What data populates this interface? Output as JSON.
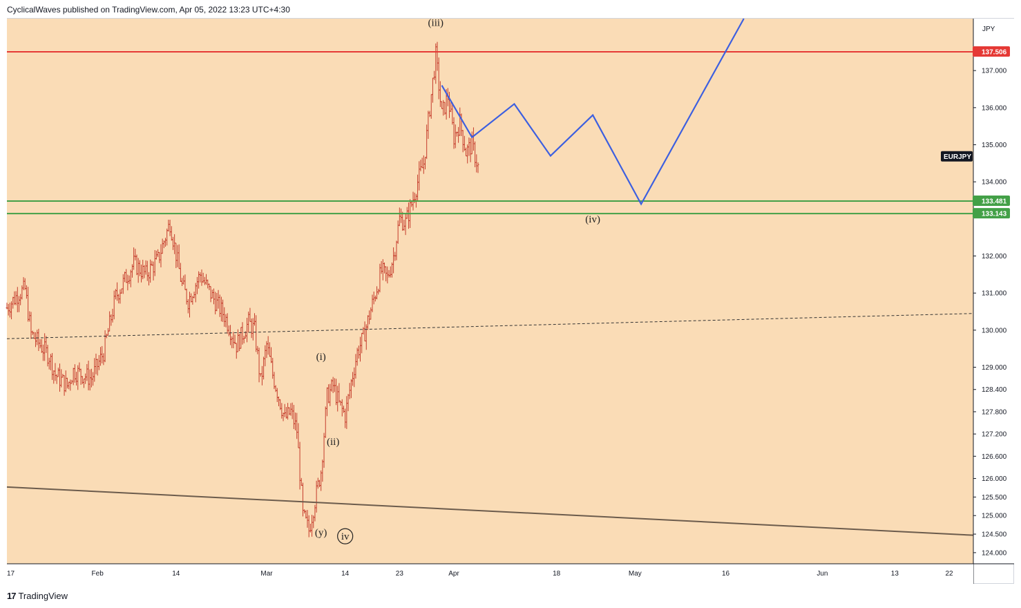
{
  "header": {
    "text": "CyclicalWaves published on TradingView.com, Apr 05, 2022 13:23 UTC+4:30"
  },
  "footer": {
    "logo": "17",
    "brand": "TradingView"
  },
  "colors": {
    "background": "#fadcb6",
    "candle": "#c43a2a",
    "resistance": "#e53935",
    "support": "#43a047",
    "projection": "#3c5fe0",
    "trend": "#6b5b4c",
    "midline": "#333333"
  },
  "chart_data": {
    "type": "candlestick",
    "symbol": "EURJPY",
    "currency_label": "JPY",
    "y_axis": {
      "ylim": [
        123.7,
        138.4
      ],
      "ticks": [
        "124.000",
        "124.500",
        "125.000",
        "125.500",
        "126.000",
        "126.600",
        "127.200",
        "127.800",
        "128.400",
        "129.000",
        "130.000",
        "131.000",
        "132.000",
        "134.000",
        "135.000",
        "136.000",
        "137.000"
      ]
    },
    "x_axis": {
      "xlim": [
        "2022-01-17",
        "2022-06-26"
      ],
      "ticks": [
        {
          "date": "2022-01-17",
          "label": "17"
        },
        {
          "date": "2022-02-01",
          "label": "Feb"
        },
        {
          "date": "2022-02-14",
          "label": "14"
        },
        {
          "date": "2022-03-01",
          "label": "Mar"
        },
        {
          "date": "2022-03-14",
          "label": "14"
        },
        {
          "date": "2022-03-23",
          "label": "23"
        },
        {
          "date": "2022-04-01",
          "label": "Apr"
        },
        {
          "date": "2022-04-18",
          "label": "18"
        },
        {
          "date": "2022-05-01",
          "label": "May"
        },
        {
          "date": "2022-05-16",
          "label": "16"
        },
        {
          "date": "2022-06-01",
          "label": "Jun"
        },
        {
          "date": "2022-06-13",
          "label": "13"
        },
        {
          "date": "2022-06-22",
          "label": "22"
        }
      ]
    },
    "price_path": [
      [
        "2022-01-17",
        130.6
      ],
      [
        "2022-01-19",
        131.0
      ],
      [
        "2022-01-20",
        131.1
      ],
      [
        "2022-01-21",
        129.9
      ],
      [
        "2022-01-24",
        129.3
      ],
      [
        "2022-01-25",
        128.8
      ],
      [
        "2022-01-27",
        128.5
      ],
      [
        "2022-01-28",
        128.9
      ],
      [
        "2022-01-31",
        128.7
      ],
      [
        "2022-02-02",
        129.4
      ],
      [
        "2022-02-04",
        130.9
      ],
      [
        "2022-02-07",
        131.8
      ],
      [
        "2022-02-09",
        131.5
      ],
      [
        "2022-02-11",
        131.9
      ],
      [
        "2022-02-13",
        132.9
      ],
      [
        "2022-02-15",
        131.2
      ],
      [
        "2022-02-16",
        130.8
      ],
      [
        "2022-02-18",
        131.5
      ],
      [
        "2022-02-20",
        130.9
      ],
      [
        "2022-02-22",
        130.4
      ],
      [
        "2022-02-24",
        129.6
      ],
      [
        "2022-02-26",
        130.2
      ],
      [
        "2022-02-27",
        130.0
      ],
      [
        "2022-02-28",
        128.6
      ],
      [
        "2022-03-01",
        129.6
      ],
      [
        "2022-03-02",
        128.8
      ],
      [
        "2022-03-03",
        128.2
      ],
      [
        "2022-03-04",
        127.6
      ],
      [
        "2022-03-05",
        127.8
      ],
      [
        "2022-03-06",
        127.3
      ],
      [
        "2022-03-07",
        125.0
      ],
      [
        "2022-03-08",
        124.6
      ],
      [
        "2022-03-09",
        125.4
      ],
      [
        "2022-03-10",
        126.2
      ],
      [
        "2022-03-11",
        128.2
      ],
      [
        "2022-03-12",
        128.5
      ],
      [
        "2022-03-13",
        128.0
      ],
      [
        "2022-03-14",
        127.7
      ],
      [
        "2022-03-15",
        128.6
      ],
      [
        "2022-03-16",
        129.4
      ],
      [
        "2022-03-17",
        129.8
      ],
      [
        "2022-03-18",
        130.4
      ],
      [
        "2022-03-19",
        131.0
      ],
      [
        "2022-03-20",
        131.6
      ],
      [
        "2022-03-21",
        131.4
      ],
      [
        "2022-03-22",
        132.0
      ],
      [
        "2022-03-23",
        133.0
      ],
      [
        "2022-03-24",
        132.9
      ],
      [
        "2022-03-25",
        133.4
      ],
      [
        "2022-03-26",
        134.0
      ],
      [
        "2022-03-27",
        134.5
      ],
      [
        "2022-03-28",
        136.0
      ],
      [
        "2022-03-29",
        137.4
      ],
      [
        "2022-03-30",
        135.8
      ],
      [
        "2022-03-31",
        136.3
      ],
      [
        "2022-04-01",
        135.2
      ],
      [
        "2022-04-02",
        135.6
      ],
      [
        "2022-04-03",
        134.8
      ],
      [
        "2022-04-04",
        135.0
      ],
      [
        "2022-04-05",
        134.4
      ]
    ],
    "levels": [
      {
        "name": "resistance",
        "value": 137.506,
        "label": "137.506",
        "color": "#e53935"
      },
      {
        "name": "support-upper",
        "value": 133.481,
        "label": "133.481",
        "color": "#43a047"
      },
      {
        "name": "support-lower",
        "value": 133.143,
        "label": "133.143",
        "color": "#43a047"
      }
    ],
    "projection_path": [
      [
        "2022-03-30",
        136.6
      ],
      [
        "2022-04-04",
        135.2
      ],
      [
        "2022-04-11",
        136.1
      ],
      [
        "2022-04-17",
        134.7
      ],
      [
        "2022-04-24",
        135.8
      ],
      [
        "2022-05-02",
        133.4
      ],
      [
        "2022-05-19",
        138.4
      ]
    ],
    "midline": [
      [
        "2022-01-17",
        129.77
      ],
      [
        "2022-06-26",
        130.45
      ]
    ],
    "trendline": [
      [
        "2022-01-17",
        125.77
      ],
      [
        "2022-06-26",
        124.47
      ]
    ],
    "wave_labels": [
      {
        "text": "(iii)",
        "date": "2022-03-29",
        "price": 138.2,
        "circled": false
      },
      {
        "text": "(iv)",
        "date": "2022-04-24",
        "price": 132.9,
        "circled": false
      },
      {
        "text": "(i)",
        "date": "2022-03-10",
        "price": 129.2,
        "circled": false
      },
      {
        "text": "(ii)",
        "date": "2022-03-12",
        "price": 126.9,
        "circled": false
      },
      {
        "text": "(y)",
        "date": "2022-03-10",
        "price": 124.45,
        "circled": false
      },
      {
        "text": "iv",
        "date": "2022-03-14",
        "price": 124.35,
        "circled": true
      }
    ]
  }
}
